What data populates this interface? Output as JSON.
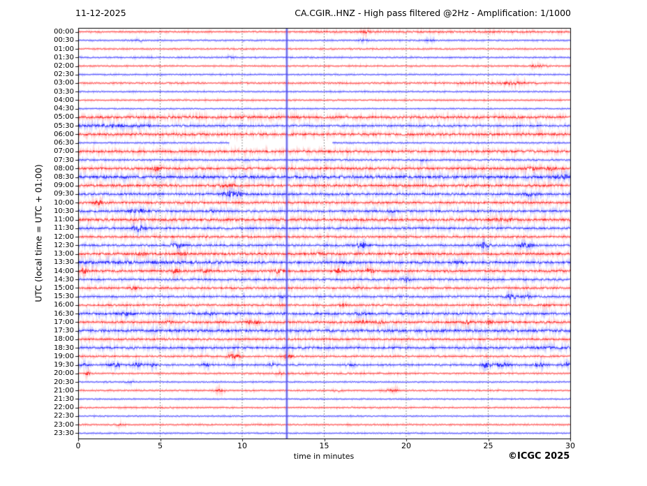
{
  "header": {
    "date": "11-12-2025",
    "title": "CA.CGIR..HNZ - High pass filtered @2Hz - Amplification: 1/1000"
  },
  "ylabel": "UTC (local time = UTC + 01:00)",
  "footer": {
    "xlabel": "time in minutes",
    "credit": "©ICGC 2025"
  },
  "chart_data": {
    "type": "line",
    "subtype": "helicorder-seismogram",
    "title": "CA.CGIR..HNZ - High pass filtered @2Hz - Amplification: 1/1000",
    "date": "11-12-2025",
    "xlabel": "time in minutes",
    "ylabel": "UTC (local time = UTC + 01:00)",
    "x_range": [
      0,
      30
    ],
    "x_ticks": [
      0,
      5,
      10,
      15,
      20,
      25,
      30
    ],
    "x_gridlines": [
      5,
      10,
      15,
      20,
      25
    ],
    "row_interval_minutes": 30,
    "grid_on": true,
    "colors": {
      "red_trace": "#ff0000",
      "blue_trace": "#0000ff",
      "grid": "#444444",
      "frame": "#000000",
      "event_line": "#4444dd"
    },
    "event_line_minute": 12.72,
    "rows": [
      {
        "label": "00:00",
        "color": "red",
        "amp": 0.55,
        "segs": [
          [
            14,
            30,
            0.8
          ]
        ],
        "events": [
          [
            17.5,
            0.8,
            0.4
          ]
        ]
      },
      {
        "label": "00:30",
        "color": "blue",
        "amp": 0.45,
        "events": [
          [
            3.7,
            0.7,
            0.3
          ],
          [
            17.4,
            0.9,
            0.3
          ],
          [
            21.5,
            0.7,
            0.3
          ]
        ]
      },
      {
        "label": "01:00",
        "color": "red",
        "amp": 0.5,
        "events": []
      },
      {
        "label": "01:30",
        "color": "blue",
        "amp": 0.5,
        "events": [
          [
            9.3,
            0.6,
            0.3
          ]
        ]
      },
      {
        "label": "02:00",
        "color": "red",
        "amp": 0.5,
        "events": [
          [
            28,
            1.4,
            0.45
          ]
        ]
      },
      {
        "label": "02:30",
        "color": "blue",
        "amp": 0.45,
        "events": []
      },
      {
        "label": "03:00",
        "color": "red",
        "amp": 0.6,
        "segs": [
          [
            23,
            28,
            1.0
          ]
        ],
        "events": [
          [
            26.6,
            1.2,
            0.5
          ]
        ]
      },
      {
        "label": "03:30",
        "color": "blue",
        "amp": 0.45,
        "events": []
      },
      {
        "label": "04:00",
        "color": "red",
        "amp": 0.5,
        "events": []
      },
      {
        "label": "04:30",
        "color": "blue",
        "amp": 0.4,
        "events": []
      },
      {
        "label": "05:00",
        "color": "red",
        "amp": 1.3,
        "events": []
      },
      {
        "label": "05:30",
        "color": "blue",
        "amp": 0.9,
        "segs": [
          [
            0,
            4.5,
            1.8
          ]
        ],
        "events": []
      },
      {
        "label": "06:00",
        "color": "red",
        "amp": 1.3,
        "events": []
      },
      {
        "label": "06:30",
        "color": "blue",
        "amp": 0.5,
        "gap": [
          9.2,
          15.5
        ],
        "events": []
      },
      {
        "label": "07:00",
        "color": "red",
        "amp": 1.2,
        "events": []
      },
      {
        "label": "07:30",
        "color": "blue",
        "amp": 0.7,
        "events": [
          [
            10.2,
            0.8,
            0.3
          ],
          [
            21,
            0.8,
            0.3
          ]
        ]
      },
      {
        "label": "08:00",
        "color": "red",
        "amp": 1.2,
        "events": [
          [
            4.8,
            2.3,
            0.3
          ],
          [
            27.5,
            1.2,
            0.5
          ],
          [
            28.8,
            1.5,
            0.4
          ]
        ]
      },
      {
        "label": "08:30",
        "color": "blue",
        "amp": 1.6,
        "events": [
          [
            29.5,
            1.8,
            0.4
          ]
        ]
      },
      {
        "label": "09:00",
        "color": "red",
        "amp": 1.25,
        "events": [
          [
            8.8,
            1.4,
            0.3
          ],
          [
            9.3,
            1.2,
            0.3
          ]
        ]
      },
      {
        "label": "09:30",
        "color": "blue",
        "amp": 1.15,
        "events": [
          [
            9.2,
            3.2,
            0.45
          ],
          [
            9.7,
            2.2,
            0.3
          ],
          [
            27.6,
            1.8,
            0.4
          ]
        ]
      },
      {
        "label": "10:00",
        "color": "red",
        "amp": 1.05,
        "events": [
          [
            1.2,
            1.9,
            0.3
          ]
        ]
      },
      {
        "label": "10:30",
        "color": "blue",
        "amp": 1.05,
        "events": [
          [
            3.7,
            1.8,
            0.6
          ],
          [
            8.1,
            1.4,
            0.3
          ],
          [
            19.1,
            1.1,
            0.3
          ]
        ]
      },
      {
        "label": "11:00",
        "color": "red",
        "amp": 1.35,
        "events": [
          [
            26,
            1.4,
            0.5
          ]
        ]
      },
      {
        "label": "11:30",
        "color": "blue",
        "amp": 1.05,
        "events": [
          [
            3.7,
            2.8,
            0.4
          ]
        ]
      },
      {
        "label": "12:00",
        "color": "red",
        "amp": 0.95,
        "events": []
      },
      {
        "label": "12:30",
        "color": "blue",
        "amp": 0.95,
        "events": [
          [
            6.1,
            2.3,
            0.4
          ],
          [
            17.3,
            2.6,
            0.4
          ],
          [
            24.8,
            2.7,
            0.3
          ],
          [
            27.3,
            3.0,
            0.35
          ]
        ]
      },
      {
        "label": "13:00",
        "color": "red",
        "amp": 1.25,
        "events": [
          [
            3.7,
            1.8,
            0.3
          ],
          [
            6.3,
            1.4,
            0.3
          ],
          [
            14.6,
            1.2,
            0.3
          ]
        ]
      },
      {
        "label": "13:30",
        "color": "blue",
        "amp": 1.25,
        "segs": [
          [
            0,
            9,
            1.8
          ]
        ],
        "events": [
          [
            16.4,
            1.3,
            0.3
          ],
          [
            23.3,
            1.2,
            0.3
          ]
        ]
      },
      {
        "label": "14:00",
        "color": "red",
        "amp": 1.15,
        "events": [
          [
            0.3,
            2.2,
            0.3
          ],
          [
            5.9,
            1.9,
            0.3
          ],
          [
            7.7,
            1.4,
            0.3
          ],
          [
            12.2,
            1.4,
            0.3
          ],
          [
            15.9,
            1.7,
            0.3
          ],
          [
            17.8,
            1.9,
            0.3
          ]
        ]
      },
      {
        "label": "14:30",
        "color": "blue",
        "amp": 0.95,
        "events": [
          [
            20,
            1.7,
            0.3
          ]
        ]
      },
      {
        "label": "15:00",
        "color": "red",
        "amp": 0.9,
        "events": [
          [
            3.4,
            1.4,
            0.25
          ],
          [
            17.1,
            0.9,
            0.3
          ]
        ]
      },
      {
        "label": "15:30",
        "color": "blue",
        "amp": 0.9,
        "events": [
          [
            12.5,
            1.3,
            0.3
          ],
          [
            26.4,
            2.2,
            0.35
          ],
          [
            27.3,
            1.5,
            0.3
          ]
        ]
      },
      {
        "label": "16:00",
        "color": "red",
        "amp": 0.9,
        "events": [
          [
            12.4,
            1.1,
            0.3
          ],
          [
            16.2,
            0.9,
            0.3
          ],
          [
            28.5,
            0.9,
            0.3
          ]
        ]
      },
      {
        "label": "16:30",
        "color": "blue",
        "amp": 1.2,
        "events": [
          [
            3,
            1.4,
            0.4
          ],
          [
            8,
            1.3,
            0.3
          ],
          [
            17.3,
            1.4,
            0.35
          ]
        ]
      },
      {
        "label": "17:00",
        "color": "red",
        "amp": 1.05,
        "events": [
          [
            5.5,
            1.4,
            0.3
          ],
          [
            10.6,
            2.3,
            0.4
          ],
          [
            17.4,
            1.4,
            0.3
          ],
          [
            18.3,
            1.7,
            0.35
          ],
          [
            23.7,
            1.7,
            0.35
          ],
          [
            25.1,
            1.4,
            0.3
          ]
        ]
      },
      {
        "label": "17:30",
        "color": "blue",
        "amp": 1.45,
        "events": []
      },
      {
        "label": "18:00",
        "color": "red",
        "amp": 0.95,
        "events": []
      },
      {
        "label": "18:30",
        "color": "blue",
        "amp": 1.15,
        "segs": [
          [
            27,
            30,
            1.6
          ]
        ],
        "events": []
      },
      {
        "label": "19:00",
        "color": "red",
        "amp": 0.7,
        "events": [
          [
            9.5,
            2.3,
            0.4
          ],
          [
            12.75,
            1.9,
            0.3
          ]
        ]
      },
      {
        "label": "19:30",
        "color": "blue",
        "amp": 0.75,
        "events": [
          [
            0.4,
            1.4,
            0.3
          ],
          [
            2.3,
            1.9,
            0.4
          ],
          [
            3.6,
            1.9,
            0.3
          ],
          [
            4.5,
            1.4,
            0.3
          ],
          [
            7.8,
            1.4,
            0.3
          ],
          [
            11.8,
            1.7,
            0.3
          ],
          [
            16.6,
            1.1,
            0.3
          ],
          [
            24.8,
            2.8,
            0.3
          ],
          [
            25.8,
            1.9,
            0.6
          ],
          [
            28.1,
            1.9,
            0.35
          ],
          [
            29.7,
            2.3,
            0.3
          ]
        ]
      },
      {
        "label": "20:00",
        "color": "red",
        "amp": 0.5,
        "segs": [
          [
            10,
            21,
            0.7
          ]
        ],
        "events": [
          [
            0.6,
            1.9,
            0.2
          ],
          [
            12.3,
            0.8,
            0.3
          ]
        ]
      },
      {
        "label": "20:30",
        "color": "blue",
        "amp": 0.42,
        "events": [
          [
            3.1,
            0.8,
            0.3
          ]
        ]
      },
      {
        "label": "21:00",
        "color": "red",
        "amp": 0.5,
        "events": [
          [
            8.7,
            1.3,
            0.3
          ],
          [
            15.9,
            0.8,
            0.3
          ],
          [
            19.1,
            1.3,
            0.4
          ]
        ]
      },
      {
        "label": "21:30",
        "color": "blue",
        "amp": 0.4,
        "events": []
      },
      {
        "label": "22:00",
        "color": "red",
        "amp": 0.5,
        "events": []
      },
      {
        "label": "22:30",
        "color": "blue",
        "amp": 0.4,
        "events": []
      },
      {
        "label": "23:00",
        "color": "red",
        "amp": 0.5,
        "events": [
          [
            2.5,
            0.7,
            0.3
          ]
        ]
      },
      {
        "label": "23:30",
        "color": "blue",
        "amp": 0.42,
        "events": []
      }
    ]
  }
}
